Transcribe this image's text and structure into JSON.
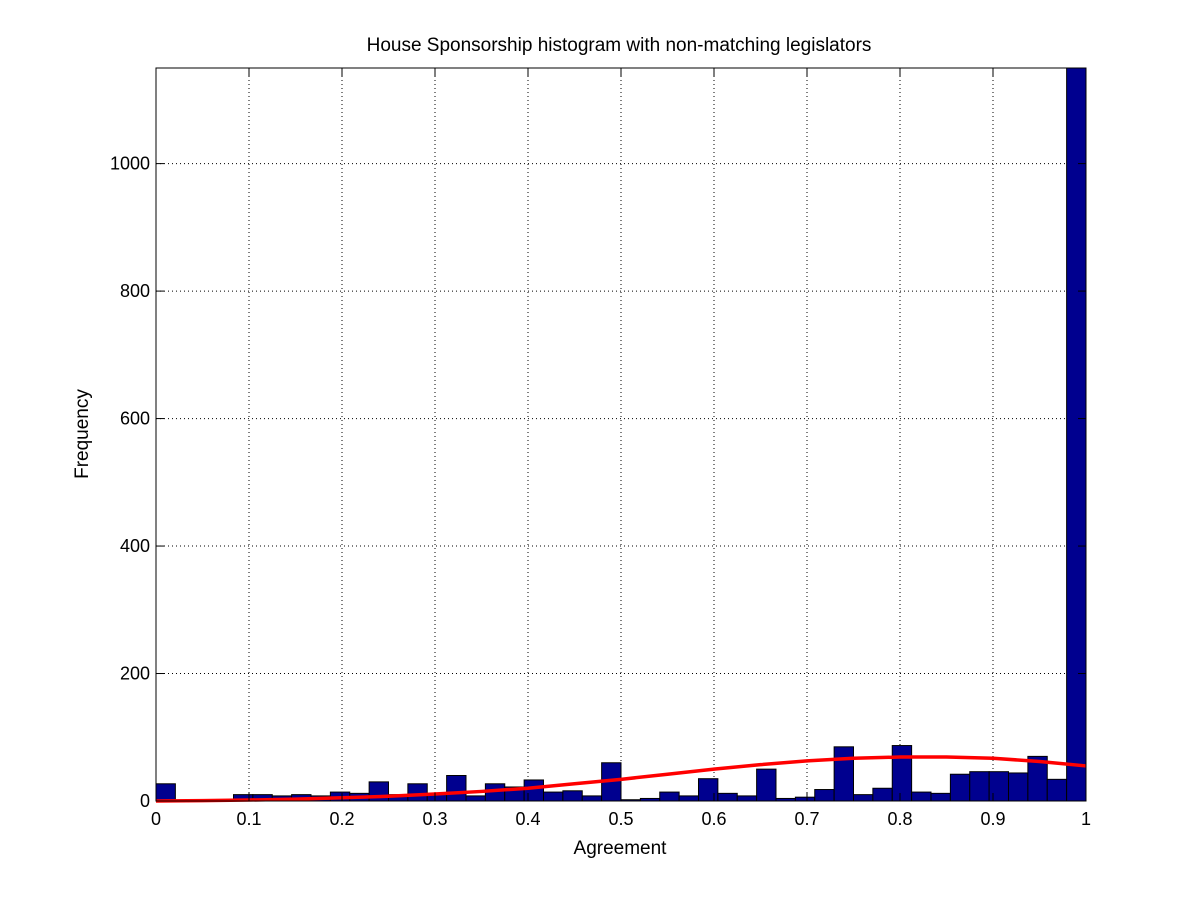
{
  "chart_data": {
    "type": "bar",
    "title": "House Sponsorship histogram with non-matching legislators",
    "xlabel": "Agreement",
    "ylabel": "Frequency",
    "xlim": [
      0,
      1
    ],
    "ylim": [
      0,
      1150
    ],
    "xticks": [
      "0",
      "0.1",
      "0.2",
      "0.3",
      "0.4",
      "0.5",
      "0.6",
      "0.7",
      "0.8",
      "0.9",
      "1"
    ],
    "yticks": [
      "0",
      "200",
      "400",
      "600",
      "800",
      "1000"
    ],
    "grid": true,
    "bin_width": 0.02083,
    "bins": [
      0.0,
      0.02083,
      0.04167,
      0.0625,
      0.08333,
      0.10417,
      0.125,
      0.14583,
      0.16667,
      0.1875,
      0.20833,
      0.22917,
      0.25,
      0.27083,
      0.29167,
      0.3125,
      0.33333,
      0.35417,
      0.375,
      0.39583,
      0.41667,
      0.4375,
      0.45833,
      0.47917,
      0.5,
      0.52083,
      0.54167,
      0.5625,
      0.58333,
      0.60417,
      0.625,
      0.64583,
      0.66667,
      0.6875,
      0.70833,
      0.72917,
      0.75,
      0.77083,
      0.79167,
      0.8125,
      0.83333,
      0.85417,
      0.875,
      0.89583,
      0.91667,
      0.9375,
      0.95833,
      0.97917
    ],
    "values": [
      27,
      0,
      0,
      0,
      10,
      10,
      8,
      10,
      8,
      14,
      12,
      30,
      10,
      27,
      10,
      40,
      8,
      27,
      22,
      33,
      14,
      16,
      8,
      60,
      2,
      4,
      14,
      8,
      35,
      12,
      8,
      50,
      4,
      6,
      18,
      85,
      10,
      20,
      87,
      14,
      12,
      42,
      46,
      46,
      44,
      70,
      34,
      1150
    ],
    "fit_curve": {
      "color": "#ff0000",
      "x": [
        0,
        0.05,
        0.1,
        0.15,
        0.2,
        0.25,
        0.3,
        0.35,
        0.4,
        0.45,
        0.5,
        0.55,
        0.6,
        0.65,
        0.7,
        0.75,
        0.8,
        0.85,
        0.9,
        0.95,
        1.0
      ],
      "y": [
        0,
        0.5,
        1.5,
        3,
        5,
        7.5,
        11,
        15,
        20,
        27,
        34,
        42,
        50,
        57,
        63,
        67,
        69,
        69,
        67,
        62,
        55
      ]
    },
    "bar_color": "#00008f"
  }
}
